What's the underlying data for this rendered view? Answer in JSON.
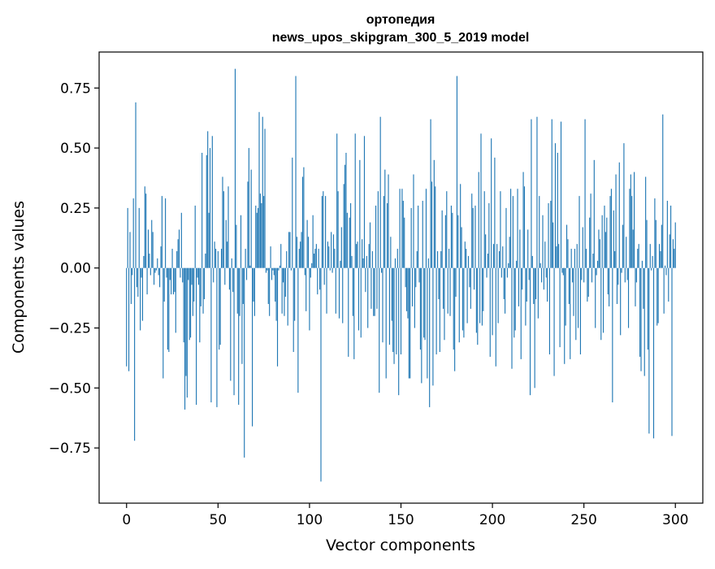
{
  "chart_data": {
    "type": "bar",
    "title_line1": "ортопедия",
    "title_line2": "news_upos_skipgram_300_5_2019 model",
    "xlabel": "Vector components",
    "ylabel": "Components values",
    "xlim": [
      -15,
      315
    ],
    "ylim": [
      -0.98,
      0.9
    ],
    "xticks": [
      {
        "value": 0,
        "label": "0"
      },
      {
        "value": 50,
        "label": "50"
      },
      {
        "value": 100,
        "label": "100"
      },
      {
        "value": 150,
        "label": "150"
      },
      {
        "value": 200,
        "label": "200"
      },
      {
        "value": 250,
        "label": "250"
      },
      {
        "value": 300,
        "label": "300"
      }
    ],
    "yticks": [
      {
        "value": -0.75,
        "label": "−0.75"
      },
      {
        "value": -0.5,
        "label": "−0.50"
      },
      {
        "value": -0.25,
        "label": "−0.25"
      },
      {
        "value": 0,
        "label": "0.00"
      },
      {
        "value": 0.25,
        "label": "0.25"
      },
      {
        "value": 0.5,
        "label": "0.50"
      },
      {
        "value": 0.75,
        "label": "0.75"
      }
    ],
    "grid": false,
    "bar_color": "#1f77b4",
    "values": [
      -0.41,
      0.25,
      -0.43,
      0.15,
      -0.15,
      -0.03,
      0.29,
      -0.72,
      0.69,
      -0.08,
      -0.12,
      0.25,
      -0.26,
      -0.04,
      -0.22,
      0.05,
      0.34,
      0.31,
      -0.11,
      0.16,
      0.06,
      -0.03,
      0.2,
      0.15,
      -0.07,
      -0.02,
      -0.01,
      0.04,
      -0.03,
      -0.08,
      0.09,
      0.3,
      -0.46,
      -0.14,
      0.29,
      -0.04,
      -0.34,
      -0.35,
      -0.05,
      -0.11,
      0.08,
      -0.11,
      -0.1,
      -0.27,
      0.07,
      0.12,
      0.16,
      -0.04,
      0.23,
      -0.06,
      -0.31,
      -0.59,
      -0.45,
      -0.54,
      -0.05,
      -0.3,
      -0.29,
      -0.07,
      -0.2,
      -0.14,
      0.26,
      -0.57,
      -0.04,
      -0.07,
      -0.31,
      -0.16,
      0.48,
      -0.19,
      -0.13,
      0.06,
      0.47,
      0.57,
      0.23,
      0.5,
      -0.56,
      0.55,
      -0.06,
      0.11,
      0.08,
      -0.58,
      0.07,
      -0.34,
      -0.32,
      0.08,
      0.38,
      0.32,
      -0.07,
      0.2,
      0.11,
      0.34,
      -0.09,
      -0.47,
      0.04,
      -0.1,
      -0.53,
      0.83,
      0.18,
      -0.19,
      -0.57,
      -0.2,
      0.22,
      -0.4,
      -0.15,
      -0.79,
      0.08,
      -0.05,
      0.36,
      0.5,
      0.01,
      0.41,
      -0.66,
      -0.14,
      -0.2,
      0.26,
      0.23,
      0.25,
      0.65,
      0.31,
      0.27,
      0.63,
      0.3,
      0.58,
      -0.02,
      -0.01,
      -0.15,
      -0.2,
      0.09,
      -0.05,
      -0.01,
      -0.03,
      -0.14,
      -0.22,
      -0.41,
      -0.01,
      0.01,
      0.1,
      -0.19,
      -0.06,
      -0.2,
      -0.12,
      0.07,
      -0.24,
      0.15,
      0.15,
      -0.01,
      0.46,
      -0.35,
      -0.22,
      0.8,
      0.13,
      -0.52,
      0.08,
      0.11,
      0.15,
      0.38,
      0.42,
      -0.03,
      -0.18,
      0.2,
      0.13,
      -0.26,
      -0.04,
      0.02,
      0.22,
      0.06,
      0.08,
      0.1,
      -0.11,
      0.08,
      -0.09,
      -0.89,
      0.3,
      0.32,
      -0.07,
      0.3,
      -0.19,
      0.11,
      0.09,
      -0.01,
      0.15,
      -0.02,
      0.14,
      0.08,
      -0.19,
      0.56,
      0.32,
      -0.21,
      0.03,
      0.17,
      -0.23,
      0.35,
      0.43,
      0.48,
      0.23,
      -0.37,
      0.21,
      0.27,
      0.05,
      -0.2,
      -0.38,
      0.56,
      0.1,
      0.11,
      -0.26,
      0.45,
      -0.29,
      0.12,
      0.04,
      0.55,
      -0.1,
      0.05,
      -0.25,
      0.1,
      0.19,
      -0.17,
      0.07,
      -0.2,
      -0.2,
      0.26,
      -0.17,
      0.32,
      -0.52,
      0.63,
      -0.02,
      -0.31,
      0.3,
      0.41,
      -0.46,
      0.27,
      0.39,
      -0.32,
      0.13,
      -0.22,
      -0.35,
      -0.4,
      0.04,
      -0.36,
      0.08,
      -0.53,
      0.33,
      -0.36,
      0.33,
      0.28,
      0.21,
      -0.08,
      -0.18,
      -0.21,
      -0.46,
      -0.46,
      0.25,
      -0.16,
      0.39,
      -0.25,
      -0.08,
      0.07,
      0.26,
      -0.06,
      -0.34,
      -0.48,
      0.28,
      -0.29,
      -0.3,
      0.33,
      -0.46,
      0.04,
      -0.58,
      0.62,
      0.36,
      -0.49,
      0.45,
      0.34,
      -0.36,
      0.07,
      -0.13,
      -0.35,
      0.07,
      0.24,
      -0.17,
      -0.3,
      0.22,
      0.32,
      -0.19,
      0.08,
      -0.2,
      0.26,
      0.23,
      -0.34,
      -0.43,
      -0.12,
      0.8,
      0.22,
      -0.31,
      0.35,
      0.17,
      -0.26,
      -0.29,
      0.11,
      0.08,
      -0.23,
      0.05,
      -0.08,
      -0.17,
      0.31,
      0.25,
      -0.09,
      0.26,
      -0.27,
      -0.32,
      0.4,
      -0.23,
      0.56,
      -0.24,
      -0.18,
      0.32,
      0.14,
      -0.04,
      0.06,
      0.27,
      -0.37,
      0.54,
      -0.28,
      0.1,
      0.46,
      -0.41,
      0.1,
      -0.23,
      0.07,
      0.32,
      -0.04,
      0.09,
      -0.13,
      -0.19,
      0.25,
      -0.04,
      0.02,
      0.13,
      0.33,
      -0.42,
      0.3,
      -0.29,
      -0.26,
      0.03,
      0.33,
      -0.16,
      0.16,
      -0.38,
      -0.09,
      0.4,
      0.34,
      -0.24,
      -0.14,
      0.16,
      -0.05,
      -0.53,
      0.62,
      0.05,
      -0.15,
      -0.5,
      -0.13,
      0.63,
      -0.21,
      0.3,
      0.02,
      -0.06,
      0.22,
      -0.09,
      0.11,
      -0.04,
      -0.14,
      0.27,
      -0.36,
      0.28,
      0.62,
      0.19,
      -0.45,
      0.52,
      0.09,
      0.48,
      0.1,
      -0.33,
      0.61,
      -0.02,
      -0.03,
      -0.4,
      -0.24,
      0.18,
      0.12,
      -0.15,
      -0.38,
      0.08,
      -0.06,
      -0.2,
      0.08,
      -0.3,
      0.1,
      -0.25,
      0.3,
      -0.36,
      -0.05,
      0.17,
      -0.06,
      0.62,
      0.08,
      -0.14,
      -0.12,
      0.21,
      0.31,
      -0.06,
      0.06,
      0.45,
      -0.25,
      -0.03,
      0.03,
      0.16,
      0.12,
      -0.3,
      0.22,
      -0.27,
      0.26,
      0.15,
      0.21,
      -0.11,
      -0.16,
      0.3,
      0.33,
      -0.56,
      0.24,
      0.07,
      0.39,
      -0.15,
      -0.07,
      0.44,
      -0.28,
      -0.02,
      0.18,
      0.52,
      -0.06,
      0.13,
      -0.05,
      -0.25,
      0.33,
      0.39,
      0.3,
      0.16,
      0.4,
      -0.16,
      -0.06,
      0.08,
      0.1,
      -0.37,
      -0.43,
      0.03,
      -0.17,
      -0.45,
      0.38,
      0.2,
      -0.34,
      -0.69,
      0.1,
      -0.01,
      0.05,
      -0.71,
      0.29,
      0.2,
      -0.24,
      -0.23,
      0.1,
      0.07,
      0.18,
      0.64,
      -0.19,
      0.01,
      -0.03,
      0.28,
      -0.14,
      0.14,
      0.26,
      -0.7,
      0.12,
      0.08,
      0.19
    ]
  }
}
